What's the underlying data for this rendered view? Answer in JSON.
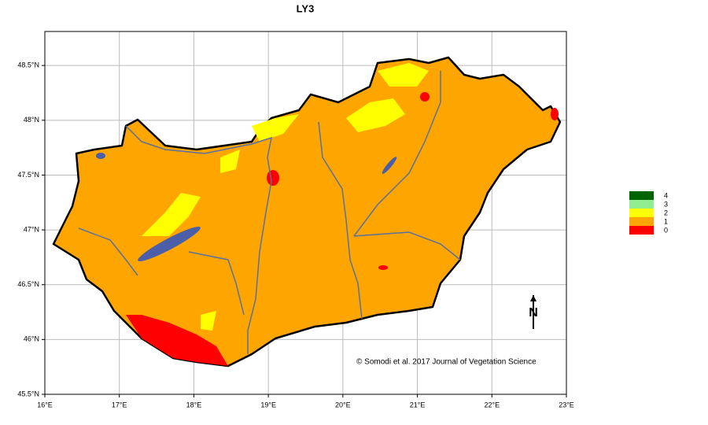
{
  "map": {
    "title": "LY3",
    "xlim": [
      16,
      23
    ],
    "ylim": [
      45.5,
      48.81
    ],
    "xticks": [
      {
        "value": 16,
        "label": "16°E"
      },
      {
        "value": 17,
        "label": "17°E"
      },
      {
        "value": 18,
        "label": "18°E"
      },
      {
        "value": 19,
        "label": "19°E"
      },
      {
        "value": 20,
        "label": "20°E"
      },
      {
        "value": 21,
        "label": "21°E"
      },
      {
        "value": 22,
        "label": "22°E"
      },
      {
        "value": 23,
        "label": "23°E"
      }
    ],
    "yticks": [
      {
        "value": 45.5,
        "label": "45.5°N"
      },
      {
        "value": 46,
        "label": "46°N"
      },
      {
        "value": 46.5,
        "label": "46.5°N"
      },
      {
        "value": 47,
        "label": "47°N"
      },
      {
        "value": 47.5,
        "label": "47.5°N"
      },
      {
        "value": 48,
        "label": "48°N"
      },
      {
        "value": 48.5,
        "label": "48.5°N"
      }
    ],
    "grid": true,
    "legend": [
      {
        "label": "4",
        "color": "#006400"
      },
      {
        "label": "3",
        "color": "#90ee90"
      },
      {
        "label": "2",
        "color": "#ffff00"
      },
      {
        "label": "1",
        "color": "#ffa500"
      },
      {
        "label": "0",
        "color": "#ff0000"
      }
    ],
    "credit": "© Somodi et al. 2017 Journal of Vegetation Science",
    "north": "N"
  }
}
